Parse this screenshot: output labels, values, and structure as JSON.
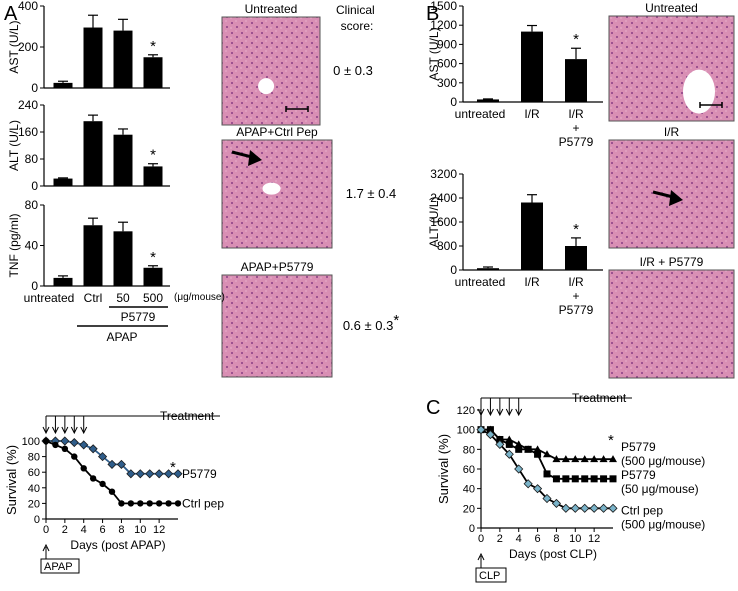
{
  "panels": {
    "A": "A",
    "B": "B",
    "C": "C"
  },
  "clinical_score_label": [
    "Clinical",
    "score:"
  ],
  "histology": {
    "A": [
      {
        "title": "Untreated",
        "score": "0 ± 0.3",
        "scale_bar": true,
        "arrow": false
      },
      {
        "title": "APAP+Ctrl Pep",
        "score": "1.7 ± 0.4",
        "scale_bar": false,
        "arrow": true
      },
      {
        "title": "APAP+P5779",
        "score": "0.6 ± 0.3",
        "score_mark": "*",
        "scale_bar": false,
        "arrow": false
      }
    ],
    "B": [
      {
        "title": "Untreated",
        "scale_bar": true,
        "arrow": false
      },
      {
        "title": "I/R",
        "scale_bar": false,
        "arrow": true
      },
      {
        "title": "I/R + P5779",
        "scale_bar": false,
        "arrow": false
      }
    ]
  },
  "chart_data": [
    {
      "id": "A-AST",
      "type": "bar",
      "ylabel": "AST (U/L)",
      "ylim": [
        0,
        400
      ],
      "yticks": [
        0,
        200,
        400
      ],
      "values": [
        25,
        295,
        280,
        150
      ],
      "errors": [
        8,
        60,
        55,
        12
      ],
      "sig": [
        false,
        false,
        false,
        true
      ]
    },
    {
      "id": "A-ALT",
      "type": "bar",
      "ylabel": "ALT (U/L)",
      "ylim": [
        0,
        240
      ],
      "yticks": [
        0,
        80,
        160,
        240
      ],
      "values": [
        22,
        192,
        152,
        58
      ],
      "errors": [
        2,
        18,
        17,
        8
      ],
      "sig": [
        false,
        false,
        false,
        true
      ]
    },
    {
      "id": "A-TNF",
      "type": "bar",
      "ylabel": "TNF (pg/ml)",
      "ylim": [
        0,
        80
      ],
      "yticks": [
        0,
        40,
        80
      ],
      "values": [
        8,
        60,
        54,
        18
      ],
      "errors": [
        2,
        7,
        9,
        2
      ],
      "sig": [
        false,
        false,
        false,
        true
      ],
      "categories": [
        "untreated",
        "Ctrl",
        "50",
        "500"
      ],
      "unit_label": "(μg/mouse)",
      "group_label": "P5779",
      "treatment_label": "APAP"
    },
    {
      "id": "B-AST",
      "type": "bar",
      "ylabel": "AST (U/L)",
      "ylim": [
        0,
        1500
      ],
      "yticks": [
        0,
        300,
        600,
        900,
        1200,
        1500
      ],
      "categories": [
        "untreated",
        "I/R",
        "I/R + P5779"
      ],
      "values": [
        40,
        1100,
        670
      ],
      "errors": [
        8,
        95,
        170
      ],
      "sig": [
        false,
        false,
        true
      ]
    },
    {
      "id": "B-ALT",
      "type": "bar",
      "ylabel": "ALT (U/L)",
      "ylim": [
        0,
        3200
      ],
      "yticks": [
        0,
        800,
        1600,
        2400,
        3200
      ],
      "categories": [
        "untreated",
        "I/R",
        "I/R + P5779"
      ],
      "values": [
        60,
        2250,
        800
      ],
      "errors": [
        40,
        260,
        270
      ],
      "sig": [
        false,
        false,
        true
      ]
    },
    {
      "id": "A-survival",
      "type": "line",
      "ylabel": "Survival (%)",
      "xlabel": "Days (post APAP)",
      "ylim": [
        0,
        100
      ],
      "yticks": [
        0,
        20,
        40,
        60,
        80,
        100
      ],
      "xlim": [
        0,
        14
      ],
      "xticks": [
        0,
        2,
        4,
        6,
        8,
        10,
        12
      ],
      "treatment_days": [
        0,
        1,
        2,
        3,
        4
      ],
      "treatment_label": "Treatment",
      "origin_label": "APAP",
      "series": [
        {
          "name": "P5779",
          "sig": "*",
          "marker": "diamond",
          "color": "#2f5d8a",
          "x": [
            0,
            1,
            2,
            3,
            4,
            5,
            6,
            7,
            8,
            9,
            10,
            11,
            12,
            13,
            14
          ],
          "y": [
            100,
            100,
            100,
            98,
            95,
            90,
            80,
            70,
            70,
            58,
            58,
            58,
            58,
            58,
            58
          ]
        },
        {
          "name": "Ctrl pep",
          "marker": "circle",
          "color": "#000000",
          "x": [
            0,
            1,
            2,
            3,
            4,
            5,
            6,
            7,
            8,
            9,
            10,
            11,
            12,
            13,
            14
          ],
          "y": [
            100,
            95,
            90,
            80,
            65,
            52,
            45,
            35,
            20,
            20,
            20,
            20,
            20,
            20,
            20
          ]
        }
      ]
    },
    {
      "id": "C-survival",
      "type": "line",
      "ylabel": "Survival (%)",
      "xlabel": "Days (post CLP)",
      "ylim": [
        0,
        120
      ],
      "yticks": [
        0,
        20,
        40,
        60,
        80,
        100,
        120
      ],
      "xlim": [
        0,
        14
      ],
      "xticks": [
        0,
        2,
        4,
        6,
        8,
        10,
        12
      ],
      "treatment_days": [
        0,
        1,
        2,
        3,
        4
      ],
      "treatment_label": "Treatment",
      "origin_label": "CLP",
      "series": [
        {
          "name": "P5779",
          "sub": "(500 μg/mouse)",
          "sig": "*",
          "marker": "triangle",
          "color": "#000000",
          "x": [
            0,
            1,
            2,
            3,
            4,
            5,
            6,
            7,
            8,
            9,
            10,
            11,
            12,
            13,
            14
          ],
          "y": [
            100,
            100,
            90,
            90,
            85,
            80,
            80,
            75,
            70,
            70,
            70,
            70,
            70,
            70,
            70
          ]
        },
        {
          "name": "P5779",
          "sub": "(50 μg/mouse)",
          "marker": "square",
          "color": "#000000",
          "x": [
            0,
            1,
            2,
            3,
            4,
            5,
            6,
            7,
            8,
            9,
            10,
            11,
            12,
            13,
            14
          ],
          "y": [
            100,
            100,
            90,
            85,
            80,
            80,
            75,
            55,
            50,
            50,
            50,
            50,
            50,
            50,
            50
          ]
        },
        {
          "name": "Ctrl pep",
          "sub": "(500 μg/mouse)",
          "marker": "diamond",
          "color": "#7ab3c9",
          "x": [
            0,
            1,
            2,
            3,
            4,
            5,
            6,
            7,
            8,
            9,
            10,
            11,
            12,
            13,
            14
          ],
          "y": [
            100,
            95,
            85,
            75,
            60,
            45,
            40,
            30,
            25,
            20,
            20,
            20,
            20,
            20,
            20
          ]
        }
      ]
    }
  ]
}
